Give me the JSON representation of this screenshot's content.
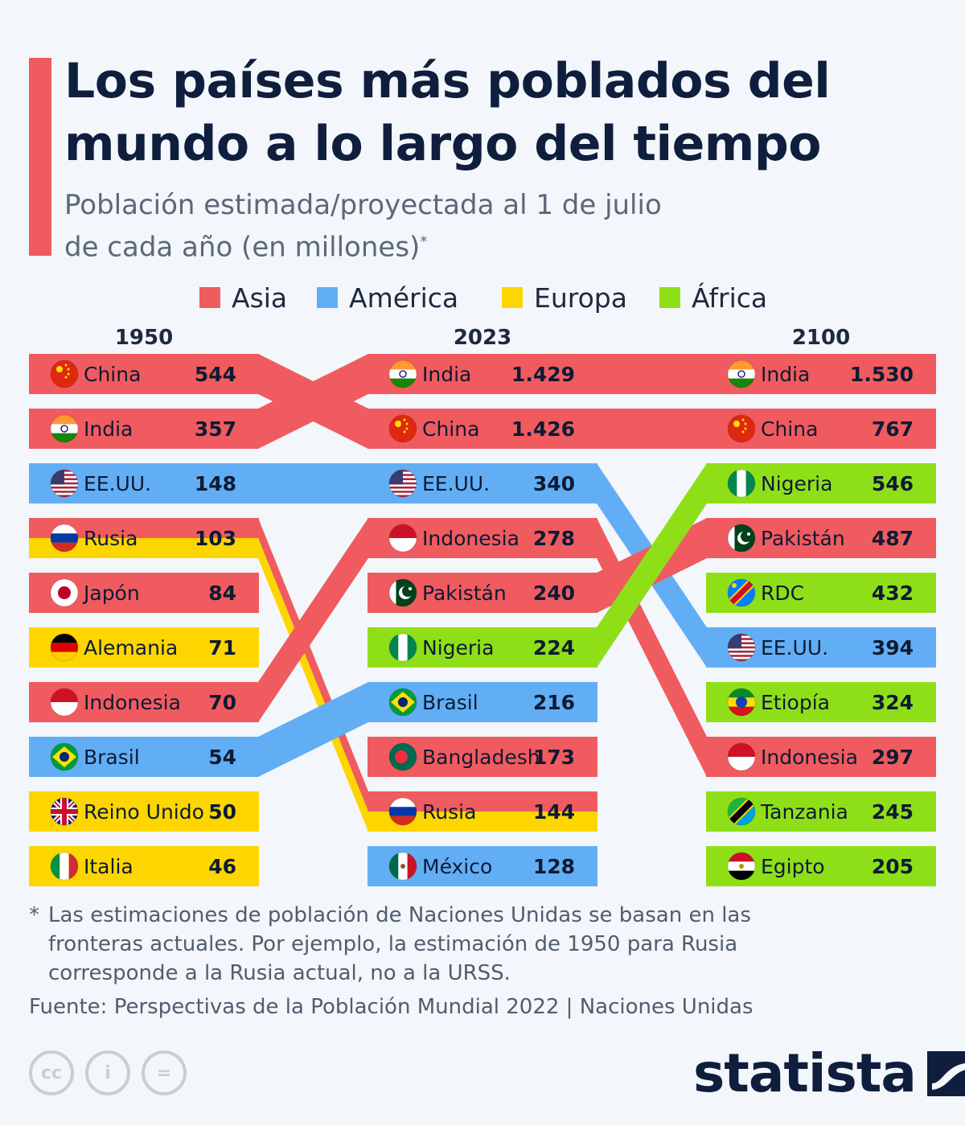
{
  "header": {
    "title_line1": "Los países más poblados del",
    "title_line2": "mundo a lo largo del tiempo",
    "subtitle_line1": "Población estimada/proyectada al 1 de julio",
    "subtitle_line2": "de cada año (en millones)",
    "subtitle_mark": "*"
  },
  "legend": [
    {
      "label": "Asia",
      "color": "#f05b5f"
    },
    {
      "label": "América",
      "color": "#62aef5"
    },
    {
      "label": "Europa",
      "color": "#fdd600"
    },
    {
      "label": "África",
      "color": "#8fdf18"
    }
  ],
  "chart_data": {
    "type": "table",
    "unit": "millones",
    "years": [
      "1950",
      "2023",
      "2100"
    ],
    "columns": [
      {
        "year": "1950",
        "rows": [
          {
            "country": "China",
            "value": "544",
            "region": "Asia",
            "flag": "china-flag"
          },
          {
            "country": "India",
            "value": "357",
            "region": "Asia",
            "flag": "india-flag"
          },
          {
            "country": "EE.UU.",
            "value": "148",
            "region": "América",
            "flag": "usa-flag"
          },
          {
            "country": "Rusia",
            "value": "103",
            "region": "Asia/Europa",
            "flag": "russia-flag"
          },
          {
            "country": "Japón",
            "value": "84",
            "region": "Asia",
            "flag": "japan-flag"
          },
          {
            "country": "Alemania",
            "value": "71",
            "region": "Europa",
            "flag": "germany-flag"
          },
          {
            "country": "Indonesia",
            "value": "70",
            "region": "Asia",
            "flag": "indonesia-flag"
          },
          {
            "country": "Brasil",
            "value": "54",
            "region": "América",
            "flag": "brazil-flag"
          },
          {
            "country": "Reino Unido",
            "value": "50",
            "region": "Europa",
            "flag": "uk-flag"
          },
          {
            "country": "Italia",
            "value": "46",
            "region": "Europa",
            "flag": "italy-flag"
          }
        ]
      },
      {
        "year": "2023",
        "rows": [
          {
            "country": "India",
            "value": "1.429",
            "region": "Asia",
            "flag": "india-flag"
          },
          {
            "country": "China",
            "value": "1.426",
            "region": "Asia",
            "flag": "china-flag"
          },
          {
            "country": "EE.UU.",
            "value": "340",
            "region": "América",
            "flag": "usa-flag"
          },
          {
            "country": "Indonesia",
            "value": "278",
            "region": "Asia",
            "flag": "indonesia-flag"
          },
          {
            "country": "Pakistán",
            "value": "240",
            "region": "Asia",
            "flag": "pakistan-flag"
          },
          {
            "country": "Nigeria",
            "value": "224",
            "region": "África",
            "flag": "nigeria-flag"
          },
          {
            "country": "Brasil",
            "value": "216",
            "region": "América",
            "flag": "brazil-flag"
          },
          {
            "country": "Bangladesh",
            "value": "173",
            "region": "Asia",
            "flag": "bangladesh-flag"
          },
          {
            "country": "Rusia",
            "value": "144",
            "region": "Asia/Europa",
            "flag": "russia-flag"
          },
          {
            "country": "México",
            "value": "128",
            "region": "América",
            "flag": "mexico-flag"
          }
        ]
      },
      {
        "year": "2100",
        "rows": [
          {
            "country": "India",
            "value": "1.530",
            "region": "Asia",
            "flag": "india-flag"
          },
          {
            "country": "China",
            "value": "767",
            "region": "Asia",
            "flag": "china-flag"
          },
          {
            "country": "Nigeria",
            "value": "546",
            "region": "África",
            "flag": "nigeria-flag"
          },
          {
            "country": "Pakistán",
            "value": "487",
            "region": "Asia",
            "flag": "pakistan-flag"
          },
          {
            "country": "RDC",
            "value": "432",
            "region": "África",
            "flag": "drc-flag"
          },
          {
            "country": "EE.UU.",
            "value": "394",
            "region": "América",
            "flag": "usa-flag"
          },
          {
            "country": "Etiopía",
            "value": "324",
            "region": "África",
            "flag": "ethiopia-flag"
          },
          {
            "country": "Indonesia",
            "value": "297",
            "region": "Asia",
            "flag": "indonesia-flag"
          },
          {
            "country": "Tanzania",
            "value": "245",
            "region": "África",
            "flag": "tanzania-flag"
          },
          {
            "country": "Egipto",
            "value": "205",
            "region": "África",
            "flag": "egypt-flag"
          }
        ]
      }
    ]
  },
  "footer": {
    "footnote_mark": "*",
    "footnote_line1": "Las estimaciones de población de Naciones Unidas se basan en las",
    "footnote_line2": "fronteras actuales. Por ejemplo, la estimación de 1950 para Rusia",
    "footnote_line3": "corresponde a la Rusia actual, no a la URSS.",
    "source": "Fuente: Perspectivas de la Población Mundial 2022 | Naciones Unidas",
    "brand": "statista",
    "license_icons": [
      "cc-icon",
      "attribution-icon",
      "no-derivatives-icon"
    ],
    "license_glyphs": [
      "cc",
      "i",
      "="
    ]
  }
}
